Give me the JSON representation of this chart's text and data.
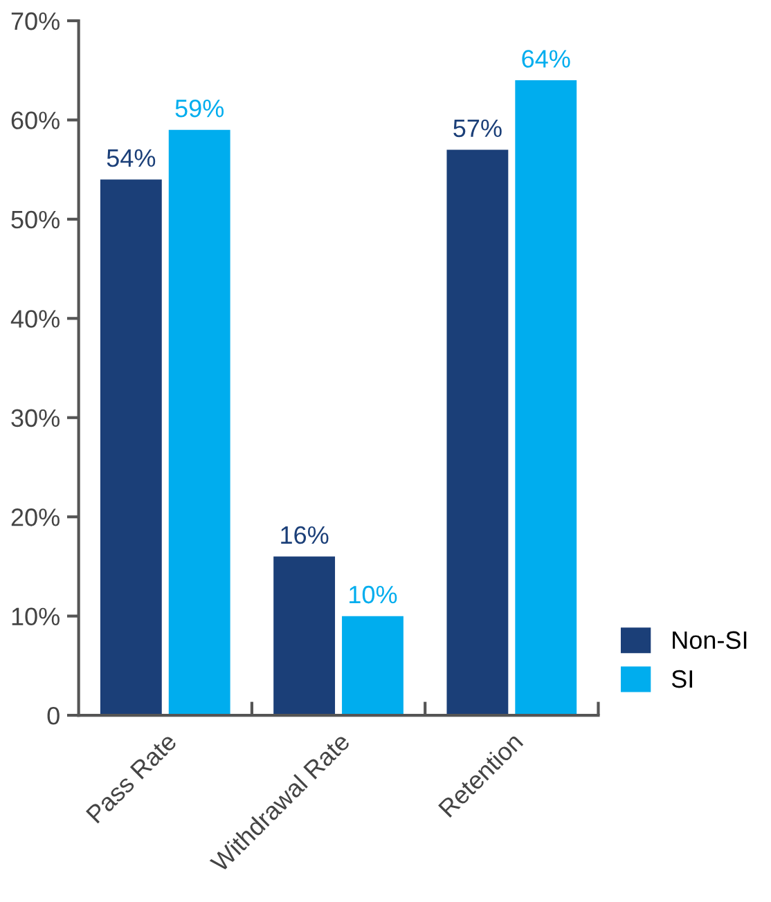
{
  "chart_data": {
    "type": "bar",
    "categories": [
      "Pass Rate",
      "Withdrawal Rate",
      "Retention"
    ],
    "series": [
      {
        "name": "Non-SI",
        "color": "#1b3f78",
        "values": [
          54,
          16,
          57
        ],
        "value_labels": [
          "54%",
          "16%",
          "57%"
        ]
      },
      {
        "name": "SI",
        "color": "#00adee",
        "values": [
          59,
          10,
          64
        ],
        "value_labels": [
          "59%",
          "10%",
          "64%"
        ]
      }
    ],
    "ylim": [
      0,
      70
    ],
    "yticks": [
      0,
      {
        "value": 10,
        "label": "10%"
      },
      {
        "value": 20,
        "label": "20%"
      },
      {
        "value": 30,
        "label": "30%"
      },
      {
        "value": 40,
        "label": "40%"
      },
      {
        "value": 50,
        "label": "50%"
      },
      {
        "value": 60,
        "label": "60%"
      },
      {
        "value": 70,
        "label": "70%"
      }
    ],
    "legend": "bottom right"
  }
}
